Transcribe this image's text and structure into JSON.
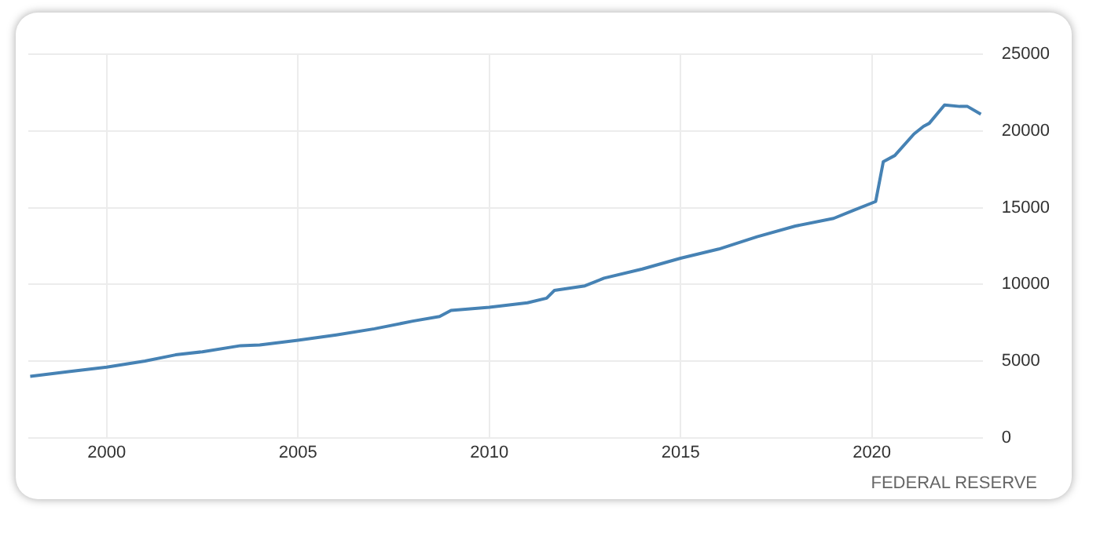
{
  "chart_data": {
    "type": "line",
    "x": [
      1998.0,
      1999.0,
      2000.0,
      2001.0,
      2001.8,
      2002.5,
      2003.5,
      2004.0,
      2005.0,
      2006.0,
      2007.0,
      2008.0,
      2008.7,
      2009.0,
      2009.5,
      2010.0,
      2011.0,
      2011.5,
      2011.7,
      2012.5,
      2013.0,
      2014.0,
      2015.0,
      2016.0,
      2017.0,
      2018.0,
      2019.0,
      2019.5,
      2020.1,
      2020.3,
      2020.6,
      2021.1,
      2021.35,
      2021.5,
      2021.9,
      2022.3,
      2022.5,
      2022.85
    ],
    "series": [
      {
        "color": "#4682b4",
        "values": [
          4000,
          4300,
          4600,
          5000,
          5400,
          5600,
          6000,
          6050,
          6350,
          6700,
          7100,
          7600,
          7900,
          8300,
          8400,
          8500,
          8800,
          9100,
          9600,
          9900,
          10400,
          11000,
          11700,
          12300,
          13100,
          13800,
          14300,
          14800,
          15400,
          18000,
          18400,
          19800,
          20300,
          20500,
          21700,
          21600,
          21600,
          21100
        ]
      }
    ],
    "xlim": [
      1997.95,
      2022.9
    ],
    "xticks": [
      2000,
      2005,
      2010,
      2015,
      2020
    ],
    "ylim": [
      0,
      25000
    ],
    "yticks": [
      0,
      5000,
      10000,
      15000,
      20000,
      25000
    ],
    "grid": true,
    "legend": false,
    "annotations": [
      "FEDERAL RESERVE"
    ]
  }
}
